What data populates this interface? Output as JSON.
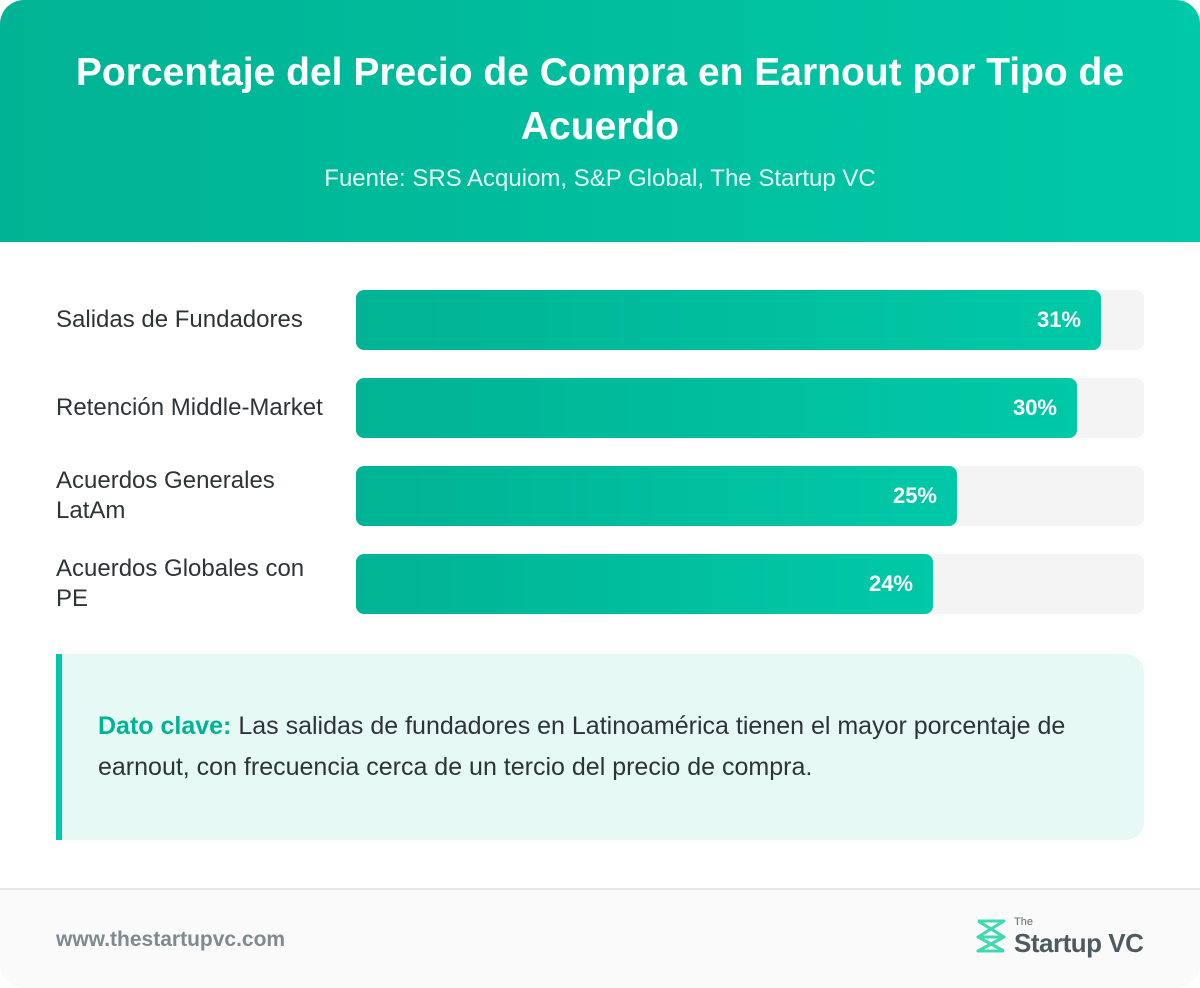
{
  "header": {
    "title": "Porcentaje del Precio de Compra en Earnout por Tipo de Acuerdo",
    "subtitle": "Fuente: SRS Acquiom, S&P Global, The Startup VC"
  },
  "chart_data": {
    "type": "bar",
    "orientation": "horizontal",
    "title": "Porcentaje del Precio de Compra en Earnout por Tipo de Acuerdo",
    "subtitle": "Fuente: SRS Acquiom, S&P Global, The Startup VC",
    "categories": [
      "Salidas de Fundadores",
      "Retención Middle-Market",
      "Acuerdos Generales LatAm",
      "Acuerdos Globales con PE"
    ],
    "values": [
      31,
      30,
      25,
      24
    ],
    "value_labels": [
      "31%",
      "30%",
      "25%",
      "24%"
    ],
    "xlim": [
      0,
      32.8
    ],
    "unit": "%",
    "grid": false,
    "legend": "none"
  },
  "callout": {
    "key_label": "Dato clave:",
    "text": " Las salidas de fundadores en Latinoamérica tienen el mayor porcentaje de earnout, con frecuencia cerca de un tercio del precio de compra."
  },
  "footer": {
    "url": "www.thestartupvc.com",
    "logo_the": "The",
    "logo_name": "Startup VC"
  },
  "colors": {
    "accent": "#00c9a7",
    "accent_dark": "#00b394",
    "track": "#f4f4f4",
    "callout_bg": "#e6f9f4"
  },
  "icons": {
    "logo": "startup-vc-logo-icon"
  }
}
